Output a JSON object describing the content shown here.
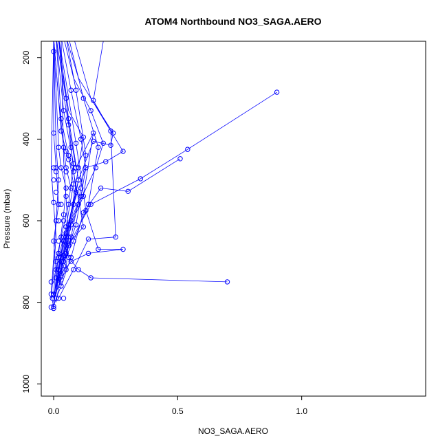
{
  "chart_data": {
    "type": "line",
    "title": "ATOM4 Northbound NO3_SAGA.AERO",
    "xlabel": "NO3_SAGA.AERO",
    "ylabel": "Pressure (mbar)",
    "xlim": [
      -0.05,
      1.5
    ],
    "ylim": [
      1030,
      160
    ],
    "y_reversed": true,
    "x_ticks": [
      0.0,
      0.5,
      1.0
    ],
    "x_tick_labels": [
      "0.0",
      "0.5",
      "1.0"
    ],
    "y_ticks": [
      200,
      400,
      600,
      800,
      1000
    ],
    "y_tick_labels": [
      "200",
      "400",
      "600",
      "800",
      "1000"
    ],
    "grid": false,
    "legend": "none",
    "series_color": "#0000ff",
    "series": [
      {
        "x": [
          0.0,
          0.0,
          0.01,
          0.02,
          0.0,
          0.01,
          0.03,
          0.01,
          0.0
        ],
        "y": [
          185,
          385,
          470,
          560,
          650,
          720,
          760,
          790,
          810
        ]
      },
      {
        "x": [
          0.0,
          0.02,
          0.04,
          0.05,
          0.07,
          0.11,
          0.04,
          0.02,
          0.0
        ],
        "y": [
          150,
          300,
          420,
          470,
          520,
          540,
          640,
          720,
          810
        ]
      },
      {
        "x": [
          0.02,
          0.06,
          0.12,
          0.1,
          0.06,
          0.03,
          0.01
        ],
        "y": [
          160,
          330,
          395,
          470,
          620,
          730,
          800
        ]
      },
      {
        "x": [
          0.9,
          0.54,
          0.35,
          0.15,
          0.06,
          0.02,
          0.0
        ],
        "y": [
          285,
          425,
          497,
          560,
          660,
          740,
          800
        ]
      },
      {
        "x": [
          0.51,
          0.3,
          0.19,
          0.12,
          0.07,
          0.03
        ],
        "y": [
          448,
          528,
          520,
          580,
          690,
          760
        ]
      },
      {
        "x": [
          0.7,
          0.15,
          0.1,
          0.06,
          0.04,
          0.02
        ],
        "y": [
          750,
          740,
          720,
          690,
          650,
          720
        ]
      },
      {
        "x": [
          0.05,
          0.1,
          0.28,
          0.21,
          0.13,
          0.08,
          0.05,
          0.01
        ],
        "y": [
          150,
          250,
          430,
          455,
          470,
          560,
          640,
          780
        ]
      },
      {
        "x": [
          0.2,
          0.16,
          0.23,
          0.25,
          0.14,
          0.08,
          0.02
        ],
        "y": [
          160,
          305,
          380,
          640,
          645,
          720,
          790
        ]
      },
      {
        "x": [
          0.08,
          0.15,
          0.24,
          0.23,
          0.16,
          0.1,
          0.05,
          0.01
        ],
        "y": [
          150,
          300,
          385,
          415,
          405,
          500,
          630,
          760
        ]
      },
      {
        "x": [
          0.02,
          0.05,
          0.09,
          0.13,
          0.18,
          0.28,
          0.14,
          0.07,
          0.03
        ],
        "y": [
          150,
          260,
          410,
          575,
          670,
          670,
          680,
          700,
          730
        ]
      },
      {
        "x": [
          0.01,
          0.03,
          0.06,
          0.08,
          0.05,
          0.02,
          0.0
        ],
        "y": [
          150,
          350,
          440,
          510,
          615,
          690,
          745
        ]
      },
      {
        "x": [
          0.03,
          0.07,
          0.11,
          0.13,
          0.09,
          0.05,
          0.02
        ],
        "y": [
          150,
          280,
          400,
          470,
          610,
          680,
          740
        ]
      },
      {
        "x": [
          0.0,
          0.01,
          0.02,
          0.01,
          0.0,
          -0.01,
          0.0
        ],
        "y": [
          160,
          420,
          500,
          600,
          690,
          780,
          812
        ]
      },
      {
        "x": [
          0.01,
          0.04,
          0.08,
          0.06,
          0.03,
          0.01,
          0.0
        ],
        "y": [
          150,
          330,
          460,
          560,
          640,
          700,
          780
        ]
      },
      {
        "x": [
          0.0,
          0.03,
          0.05,
          0.08,
          0.12,
          0.06,
          0.03,
          0.01
        ],
        "y": [
          150,
          380,
          430,
          480,
          615,
          655,
          690,
          770
        ]
      },
      {
        "x": [
          0.02,
          0.04,
          0.06,
          0.09,
          0.16,
          0.12,
          0.07,
          0.03
        ],
        "y": [
          150,
          290,
          365,
          470,
          385,
          540,
          610,
          720
        ]
      },
      {
        "x": [
          0.04,
          0.08,
          0.15,
          0.2,
          0.17,
          0.1,
          0.04,
          0.01
        ],
        "y": [
          150,
          250,
          330,
          410,
          470,
          560,
          650,
          740
        ]
      },
      {
        "x": [
          0.0,
          0.02,
          0.03,
          0.05,
          0.04,
          0.02,
          0.0
        ],
        "y": [
          150,
          420,
          470,
          520,
          585,
          680,
          800
        ]
      },
      {
        "x": [
          0.01,
          0.05,
          0.07,
          0.09,
          0.06,
          0.04,
          0.02,
          0.0
        ],
        "y": [
          150,
          300,
          420,
          530,
          610,
          685,
          720,
          790
        ]
      },
      {
        "x": [
          0.03,
          0.04,
          0.06,
          0.05,
          0.03,
          0.0
        ],
        "y": [
          150,
          450,
          640,
          720,
          745,
          790
        ]
      },
      {
        "x": [
          0.06,
          0.12,
          0.18,
          0.14,
          0.08,
          0.04,
          0.01
        ],
        "y": [
          150,
          300,
          420,
          560,
          650,
          700,
          760
        ]
      },
      {
        "x": [
          0.0,
          -0.01,
          0.0,
          0.01,
          0.0,
          -0.01
        ],
        "y": [
          160,
          470,
          560,
          640,
          720,
          790
        ]
      },
      {
        "x": [
          0.02,
          0.06,
          0.1,
          0.07,
          0.05,
          0.02
        ],
        "y": [
          150,
          350,
          500,
          600,
          680,
          745
        ]
      },
      {
        "x": [
          0.05,
          0.09,
          0.13,
          0.11,
          0.07,
          0.03
        ],
        "y": [
          150,
          280,
          440,
          520,
          640,
          735
        ]
      }
    ],
    "points": [
      [
        0.0,
        185
      ],
      [
        0.0,
        385
      ],
      [
        0.01,
        470
      ],
      [
        0.0,
        470
      ],
      [
        0.01,
        480
      ],
      [
        0.0,
        500
      ],
      [
        0.02,
        560
      ],
      [
        0.0,
        555
      ],
      [
        0.02,
        600
      ],
      [
        0.0,
        650
      ],
      [
        0.01,
        720
      ],
      [
        0.03,
        760
      ],
      [
        0.01,
        790
      ],
      [
        0.0,
        810
      ],
      [
        -0.01,
        812
      ],
      [
        0.0,
        815
      ],
      [
        -0.01,
        750
      ],
      [
        -0.01,
        780
      ],
      [
        0.0,
        782
      ],
      [
        -0.005,
        790
      ],
      [
        0.02,
        790
      ],
      [
        0.04,
        790
      ],
      [
        0.0,
        780
      ],
      [
        0.02,
        420
      ],
      [
        0.04,
        420
      ],
      [
        0.05,
        470
      ],
      [
        0.07,
        520
      ],
      [
        0.11,
        540
      ],
      [
        0.04,
        640
      ],
      [
        0.02,
        720
      ],
      [
        0.12,
        395
      ],
      [
        0.1,
        470
      ],
      [
        0.06,
        620
      ],
      [
        0.03,
        730
      ],
      [
        0.06,
        440
      ],
      [
        0.05,
        480
      ],
      [
        0.9,
        285
      ],
      [
        0.54,
        425
      ],
      [
        0.35,
        497
      ],
      [
        0.15,
        560
      ],
      [
        0.06,
        660
      ],
      [
        0.02,
        740
      ],
      [
        0.51,
        448
      ],
      [
        0.3,
        528
      ],
      [
        0.19,
        520
      ],
      [
        0.12,
        580
      ],
      [
        0.07,
        690
      ],
      [
        0.03,
        760
      ],
      [
        0.7,
        750
      ],
      [
        0.15,
        740
      ],
      [
        0.1,
        720
      ],
      [
        0.06,
        690
      ],
      [
        0.04,
        650
      ],
      [
        0.28,
        430
      ],
      [
        0.21,
        455
      ],
      [
        0.13,
        470
      ],
      [
        0.08,
        560
      ],
      [
        0.05,
        640
      ],
      [
        0.16,
        305
      ],
      [
        0.23,
        380
      ],
      [
        0.25,
        640
      ],
      [
        0.14,
        645
      ],
      [
        0.08,
        720
      ],
      [
        0.24,
        385
      ],
      [
        0.23,
        415
      ],
      [
        0.16,
        405
      ],
      [
        0.1,
        500
      ],
      [
        0.05,
        630
      ],
      [
        0.09,
        410
      ],
      [
        0.13,
        575
      ],
      [
        0.18,
        670
      ],
      [
        0.28,
        670
      ],
      [
        0.14,
        680
      ],
      [
        0.07,
        700
      ],
      [
        0.03,
        350
      ],
      [
        0.06,
        440
      ],
      [
        0.08,
        510
      ],
      [
        0.05,
        615
      ],
      [
        0.02,
        690
      ],
      [
        0.07,
        280
      ],
      [
        0.11,
        400
      ],
      [
        0.13,
        470
      ],
      [
        0.09,
        610
      ],
      [
        0.05,
        680
      ],
      [
        0.04,
        330
      ],
      [
        0.08,
        460
      ],
      [
        0.06,
        560
      ],
      [
        0.03,
        640
      ],
      [
        0.01,
        700
      ],
      [
        0.03,
        380
      ],
      [
        0.05,
        430
      ],
      [
        0.08,
        480
      ],
      [
        0.12,
        615
      ],
      [
        0.06,
        655
      ],
      [
        0.03,
        690
      ],
      [
        0.06,
        365
      ],
      [
        0.09,
        470
      ],
      [
        0.16,
        385
      ],
      [
        0.12,
        540
      ],
      [
        0.07,
        610
      ],
      [
        0.15,
        330
      ],
      [
        0.2,
        410
      ],
      [
        0.17,
        470
      ],
      [
        0.1,
        560
      ],
      [
        0.04,
        650
      ],
      [
        0.03,
        470
      ],
      [
        0.05,
        520
      ],
      [
        0.04,
        585
      ],
      [
        0.02,
        680
      ],
      [
        0.05,
        300
      ],
      [
        0.07,
        420
      ],
      [
        0.09,
        530
      ],
      [
        0.06,
        610
      ],
      [
        0.04,
        685
      ],
      [
        0.02,
        720
      ],
      [
        0.06,
        640
      ],
      [
        0.05,
        720
      ],
      [
        0.03,
        745
      ],
      [
        0.12,
        300
      ],
      [
        0.18,
        420
      ],
      [
        0.14,
        560
      ],
      [
        0.08,
        650
      ],
      [
        0.04,
        700
      ],
      [
        0.06,
        350
      ],
      [
        0.1,
        500
      ],
      [
        0.07,
        600
      ],
      [
        0.05,
        680
      ],
      [
        0.02,
        745
      ],
      [
        0.09,
        280
      ],
      [
        0.13,
        440
      ],
      [
        0.11,
        520
      ],
      [
        0.07,
        640
      ],
      [
        0.03,
        735
      ],
      [
        0.02,
        500
      ],
      [
        0.01,
        600
      ],
      [
        0.03,
        560
      ],
      [
        0.04,
        600
      ],
      [
        0.05,
        540
      ],
      [
        0.06,
        450
      ],
      [
        0.01,
        530
      ],
      [
        0.02,
        650
      ],
      [
        0.03,
        700
      ],
      [
        0.04,
        710
      ],
      [
        0.01,
        740
      ],
      [
        0.02,
        680
      ]
    ]
  }
}
